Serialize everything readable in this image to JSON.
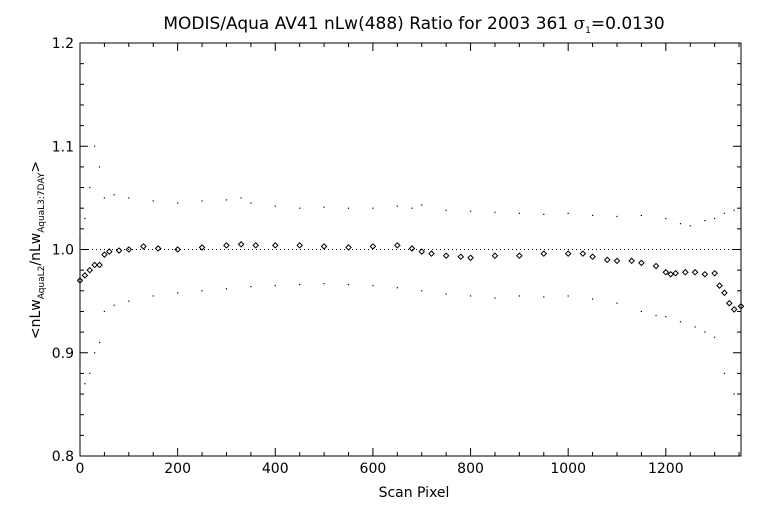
{
  "chart_data": {
    "type": "scatter",
    "title_parts": {
      "main": "MODIS/Aqua AV41 nLw(488) Ratio for 2003 361 ",
      "sigma_symbol": "σ",
      "sigma_sub": "1",
      "sigma_value": "=0.0130"
    },
    "xlabel": "Scan Pixel",
    "ylabel_parts": {
      "open": "<nLw",
      "sub1": "AquaL2",
      "mid": "/nLw",
      "sub2": "AquaL3:7DAY",
      "close": ">"
    },
    "xlim": [
      0,
      1354
    ],
    "ylim": [
      0.8,
      1.2
    ],
    "x_ticks": [
      {
        "value": 0,
        "label": "0"
      },
      {
        "value": 200,
        "label": "200"
      },
      {
        "value": 400,
        "label": "400"
      },
      {
        "value": 600,
        "label": "600"
      },
      {
        "value": 800,
        "label": "800"
      },
      {
        "value": 1000,
        "label": "1000"
      },
      {
        "value": 1200,
        "label": "1200"
      }
    ],
    "y_ticks": [
      {
        "value": 0.8,
        "label": "0.8"
      },
      {
        "value": 0.9,
        "label": "0.9"
      },
      {
        "value": 1.0,
        "label": "1.0"
      },
      {
        "value": 1.1,
        "label": "1.1"
      },
      {
        "value": 1.2,
        "label": "1.2"
      }
    ],
    "reference_line": 1.0,
    "series": [
      {
        "role": "mean",
        "marker": "diamond",
        "x": [
          0,
          10,
          20,
          30,
          40,
          50,
          60,
          80,
          100,
          130,
          160,
          200,
          250,
          300,
          330,
          360,
          400,
          450,
          500,
          550,
          600,
          650,
          680,
          700,
          720,
          750,
          780,
          800,
          850,
          900,
          950,
          1000,
          1030,
          1050,
          1080,
          1100,
          1130,
          1150,
          1180,
          1200,
          1210,
          1220,
          1240,
          1260,
          1280,
          1300,
          1310,
          1320,
          1330,
          1340,
          1354
        ],
        "y": [
          0.97,
          0.975,
          0.98,
          0.985,
          0.985,
          0.995,
          0.998,
          0.999,
          1.0,
          1.003,
          1.001,
          1.0,
          1.002,
          1.004,
          1.005,
          1.004,
          1.004,
          1.004,
          1.003,
          1.002,
          1.003,
          1.004,
          1.001,
          0.998,
          0.996,
          0.994,
          0.993,
          0.992,
          0.994,
          0.994,
          0.996,
          0.996,
          0.996,
          0.993,
          0.99,
          0.989,
          0.989,
          0.987,
          0.984,
          0.978,
          0.976,
          0.977,
          0.978,
          0.978,
          0.976,
          0.977,
          0.965,
          0.958,
          0.948,
          0.942,
          0.945
        ]
      },
      {
        "role": "upper",
        "marker": "dot",
        "x": [
          0,
          10,
          20,
          30,
          40,
          50,
          70,
          100,
          150,
          200,
          250,
          300,
          330,
          350,
          400,
          450,
          500,
          550,
          600,
          650,
          680,
          700,
          750,
          800,
          850,
          900,
          950,
          1000,
          1050,
          1100,
          1150,
          1200,
          1230,
          1250,
          1280,
          1300,
          1320,
          1340,
          1354
        ],
        "y": [
          1.01,
          1.03,
          1.06,
          1.1,
          1.08,
          1.05,
          1.053,
          1.05,
          1.047,
          1.045,
          1.047,
          1.048,
          1.05,
          1.045,
          1.042,
          1.04,
          1.041,
          1.04,
          1.04,
          1.042,
          1.04,
          1.043,
          1.038,
          1.037,
          1.036,
          1.035,
          1.034,
          1.035,
          1.033,
          1.032,
          1.033,
          1.03,
          1.025,
          1.023,
          1.028,
          1.03,
          1.035,
          1.038,
          1.03
        ]
      },
      {
        "role": "lower",
        "marker": "dot",
        "x": [
          0,
          10,
          20,
          30,
          40,
          50,
          70,
          100,
          150,
          200,
          250,
          300,
          350,
          400,
          450,
          500,
          550,
          600,
          650,
          700,
          750,
          800,
          850,
          900,
          950,
          1000,
          1050,
          1100,
          1150,
          1180,
          1200,
          1230,
          1260,
          1280,
          1300,
          1320,
          1340,
          1354
        ],
        "y": [
          0.89,
          0.87,
          0.88,
          0.9,
          0.91,
          0.94,
          0.946,
          0.95,
          0.955,
          0.958,
          0.96,
          0.962,
          0.964,
          0.965,
          0.966,
          0.967,
          0.966,
          0.965,
          0.963,
          0.96,
          0.957,
          0.955,
          0.953,
          0.955,
          0.954,
          0.955,
          0.952,
          0.948,
          0.94,
          0.936,
          0.935,
          0.93,
          0.925,
          0.92,
          0.915,
          0.88,
          0.86,
          0.84
        ]
      }
    ]
  }
}
